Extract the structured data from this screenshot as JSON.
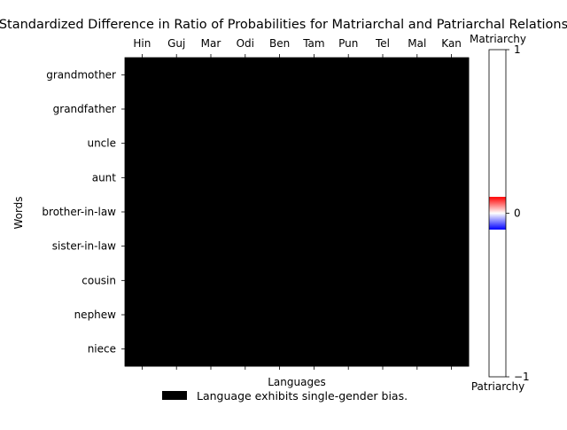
{
  "chart_data": {
    "type": "heatmap",
    "title": "Standardized Difference in Ratio of Probabilities for Matriarchal and Patriarchal Relations",
    "xlabel": "Languages",
    "ylabel": "Words",
    "x_categories": [
      "Hin",
      "Guj",
      "Mar",
      "Odi",
      "Ben",
      "Tam",
      "Pun",
      "Tel",
      "Mal",
      "Kan"
    ],
    "y_categories": [
      "grandmother",
      "grandfather",
      "uncle",
      "aunt",
      "brother-in-law",
      "sister-in-law",
      "cousin",
      "nephew",
      "niece"
    ],
    "cell_state": "single-gender-bias",
    "cell_color": "#000000",
    "colorbar": {
      "min": -1,
      "max": 1,
      "ticks": [
        1,
        0,
        -1
      ],
      "tick_labels": [
        "1",
        "0",
        "−1"
      ],
      "top_label": "Matriarchy",
      "bottom_label": "Patriarchy",
      "colormap": "bwr",
      "visible_band": [
        -0.1,
        0.1
      ]
    },
    "legend": {
      "placement": "bottom-center",
      "entries": [
        {
          "label": "Language exhibits single-gender bias.",
          "color": "#000000"
        }
      ]
    },
    "grid": false
  }
}
